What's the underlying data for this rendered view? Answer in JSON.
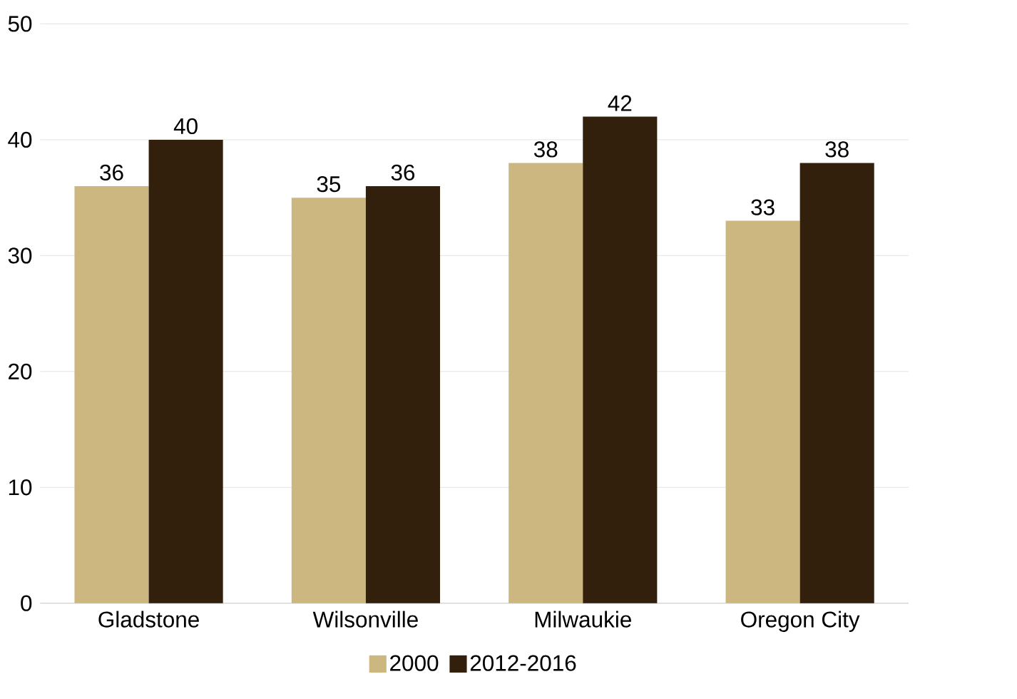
{
  "chart_data": {
    "type": "bar",
    "categories": [
      "Gladstone",
      "Wilsonville",
      "Milwaukie",
      "Oregon City"
    ],
    "series": [
      {
        "name": "2000",
        "color": "#cbb77f",
        "values": [
          36,
          35,
          38,
          33
        ]
      },
      {
        "name": "2012-2016",
        "color": "#32200c",
        "values": [
          40,
          36,
          42,
          38
        ]
      }
    ],
    "ylim": [
      0,
      50
    ],
    "yticks": [
      0,
      10,
      20,
      30,
      40,
      50
    ],
    "grid": "y",
    "legend": "bottom",
    "data_labels": true
  }
}
